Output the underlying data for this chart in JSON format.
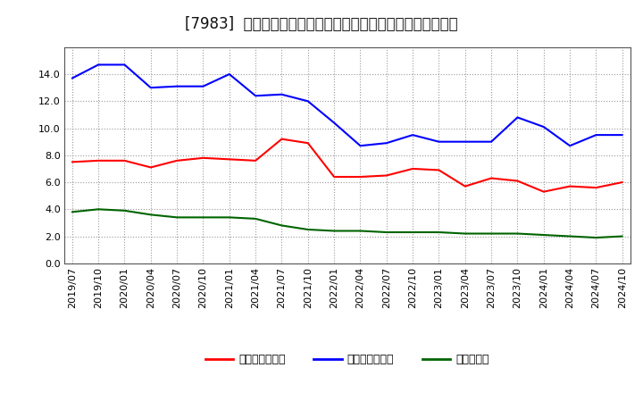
{
  "title": "[7983]  売上債権回転率、買入債務回転率、在庫回転率の推移",
  "ylim": [
    0.0,
    16.0
  ],
  "yticks": [
    0.0,
    2.0,
    4.0,
    6.0,
    8.0,
    10.0,
    12.0,
    14.0
  ],
  "background_color": "#ffffff",
  "plot_bg_color": "#ffffff",
  "grid_color": "#999999",
  "dates": [
    "2019/07",
    "2019/10",
    "2020/01",
    "2020/04",
    "2020/07",
    "2020/10",
    "2021/01",
    "2021/04",
    "2021/07",
    "2021/10",
    "2022/01",
    "2022/04",
    "2022/07",
    "2022/10",
    "2023/01",
    "2023/04",
    "2023/07",
    "2023/10",
    "2024/01",
    "2024/04",
    "2024/07",
    "2024/10"
  ],
  "series": {
    "売上債権回転率": {
      "color": "#ff0000",
      "values": [
        7.5,
        7.6,
        7.6,
        7.1,
        7.6,
        7.8,
        7.7,
        7.6,
        9.2,
        8.9,
        6.4,
        6.4,
        6.5,
        7.0,
        6.9,
        5.7,
        6.3,
        6.1,
        5.3,
        5.7,
        5.6,
        6.0
      ]
    },
    "買入債務回転率": {
      "color": "#0000ff",
      "values": [
        13.7,
        14.7,
        14.7,
        13.0,
        13.1,
        13.1,
        14.0,
        12.4,
        12.5,
        12.0,
        10.4,
        8.7,
        8.9,
        9.5,
        9.0,
        9.0,
        9.0,
        10.8,
        10.1,
        8.7,
        9.5,
        9.5
      ]
    },
    "在庫回転率": {
      "color": "#006400",
      "values": [
        3.8,
        4.0,
        3.9,
        3.6,
        3.4,
        3.4,
        3.4,
        3.3,
        2.8,
        2.5,
        2.4,
        2.4,
        2.3,
        2.3,
        2.3,
        2.2,
        2.2,
        2.2,
        2.1,
        2.0,
        1.9,
        2.0
      ]
    }
  },
  "legend_entries": [
    "売上債権回転率",
    "買入債務回転率",
    "在庫回転率"
  ],
  "legend_colors": [
    "#ff0000",
    "#0000ff",
    "#006400"
  ],
  "title_fontsize": 12,
  "tick_fontsize": 8,
  "legend_fontsize": 9
}
